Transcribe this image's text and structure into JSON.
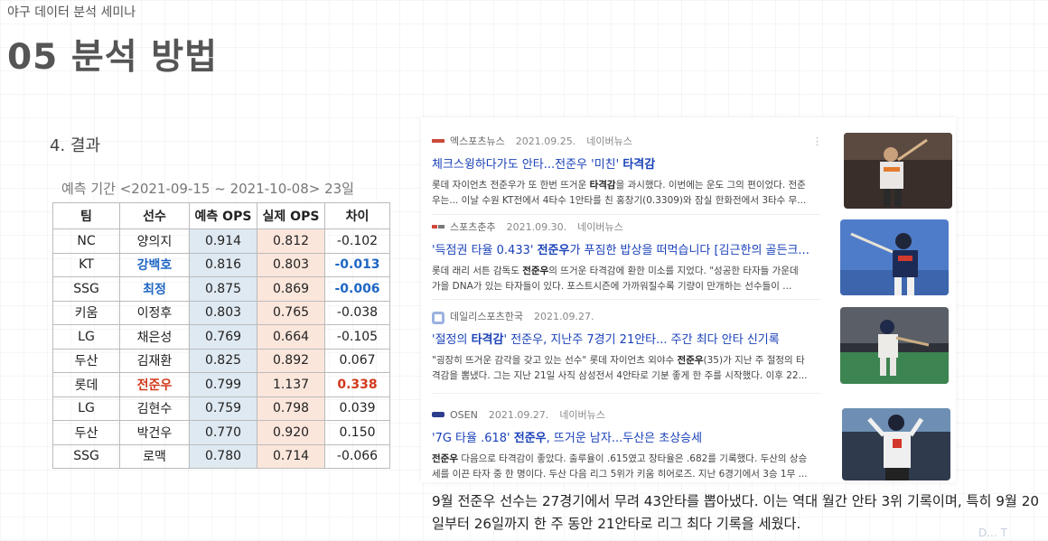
{
  "header": {
    "seminar": "야구 데이터 분석 세미나",
    "title": "05 분석 방법"
  },
  "section": {
    "label": "4. 결과",
    "period": "예측 기간 <2021-09-15 ~ 2021-10-08> 23일"
  },
  "table": {
    "headers": [
      "팀",
      "선수",
      "예측 OPS",
      "실제 OPS",
      "차이"
    ],
    "rows": [
      {
        "team": "NC",
        "player": "양의지",
        "pred": "0.914",
        "actual": "0.812",
        "diff": "-0.102"
      },
      {
        "team": "KT",
        "player": "강백호",
        "pred": "0.816",
        "actual": "0.803",
        "diff": "-0.013"
      },
      {
        "team": "SSG",
        "player": "최정",
        "pred": "0.875",
        "actual": "0.869",
        "diff": "-0.006"
      },
      {
        "team": "키움",
        "player": "이정후",
        "pred": "0.803",
        "actual": "0.765",
        "diff": "-0.038"
      },
      {
        "team": "LG",
        "player": "채은성",
        "pred": "0.769",
        "actual": "0.664",
        "diff": "-0.105"
      },
      {
        "team": "두산",
        "player": "김재환",
        "pred": "0.825",
        "actual": "0.892",
        "diff": "0.067"
      },
      {
        "team": "롯데",
        "player": "전준우",
        "pred": "0.799",
        "actual": "1.137",
        "diff": "0.338"
      },
      {
        "team": "LG",
        "player": "김현수",
        "pred": "0.759",
        "actual": "0.798",
        "diff": "0.039"
      },
      {
        "team": "두산",
        "player": "박건우",
        "pred": "0.770",
        "actual": "0.920",
        "diff": "0.150"
      },
      {
        "team": "SSG",
        "player": "로맥",
        "pred": "0.780",
        "actual": "0.714",
        "diff": "-0.066"
      }
    ]
  },
  "news": [
    {
      "source": "엑스포츠뉴스",
      "date": "2021.09.25.",
      "portal": "네이버뉴스",
      "title_a": "체크스윙하다가도 안타...전준우 '미친' ",
      "title_b": "타격감",
      "title_c": "",
      "body_1a": "롯데 자이언츠 전준우가 또 한번 뜨거운 ",
      "body_1b": "타격감",
      "body_1c": "을 과시했다. 이번에는 운도 그의 편이었다. 전준",
      "body_2": "우는... 이날 수원 KT전에서 4타수 1안타를 친 홍창기(0.3309)와 잠실 한화전에서 3타수 무..."
    },
    {
      "source": "스포츠춘추",
      "date": "2021.09.30.",
      "portal": "네이버뉴스",
      "title_a": "'득점권 타율 0.433' ",
      "title_b": "전준우",
      "title_c": "가 푸짐한 밥상을 떠먹습니다 [김근한의 골든크...",
      "body_1a": "롯데 래리 서튼 감독도 ",
      "body_1b": "전준우",
      "body_1c": "의 뜨거운 타격감에 환한 미소를 지었다. \"성공한 타자들 가운데",
      "body_2": "가을 DNA가 있는 타자들이 있다. 포스트시즌에 가까워질수록 기량이 만개하는 선수들이 ..."
    },
    {
      "source": "데일리스포츠한국",
      "date": "2021.09.27.",
      "portal": "",
      "title_a": "'절정의 ",
      "title_b": "타격감",
      "title_c": "' 전준우, 지난주 7경기 21안타... 주간 최다 안타 신기록",
      "body_1a": "\"굉장히 뜨거운 감각을 갖고 있는 선수\" 롯데 자이언츠 외야수 ",
      "body_1b": "전준우",
      "body_1c": "(35)가 지난 주 절정의 타",
      "body_2": "격감을 뽐냈다. 그는 지난 21일 사직 삼성전서 4안타로 기분 좋게 한 주를 시작했다. 이후 22..."
    },
    {
      "source": "OSEN",
      "date": "2021.09.27.",
      "portal": "네이버뉴스",
      "title_a": "'7G 타율 .618' ",
      "title_b": "전준우",
      "title_c": ", 뜨거운 남자...두산은 초상승세",
      "body_1a": "",
      "body_1b": "전준우",
      "body_1c": " 다음으로 타격감이 좋았다. 출루율이 .615였고 장타율은 .682를 기록했다. 두산의 상승",
      "body_2": "세를 이끈 타자 중 한 명이다. 두산 다음 리그 5위가 키움 히어로즈. 지난 6경기에서 3승 1무 ..."
    }
  ],
  "summary": "9월 전준우 선수는 27경기에서 무려 43안타를 뽑아냈다. 이는 역대 월간 안타 3위 기록이며, 특히 9월 20일부터 26일까지 한 주 동안 21안타로 리그 최다 기록을 세웠다.",
  "colors": {
    "highlight_blue": "#1f67c4",
    "highlight_red": "#d23a1c",
    "pred_bg": "#dfe9f1",
    "actual_bg": "#fbe6dc",
    "news_link": "#1a41b8"
  }
}
